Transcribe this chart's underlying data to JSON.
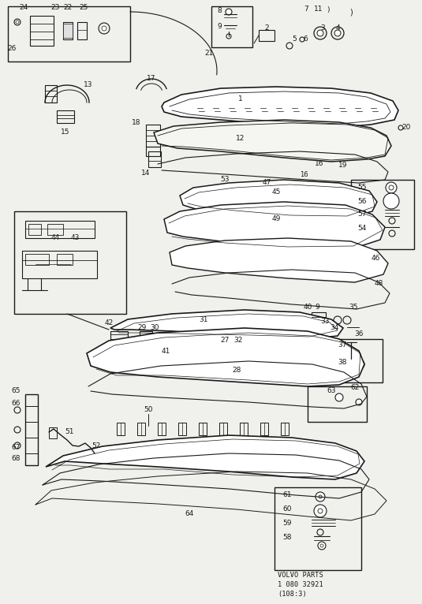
{
  "bg_color": "#f0f0ec",
  "line_color": "#1a1a1a",
  "volvo_parts_text": "VOLVO PARTS\n1 080 32921\n(108:3)",
  "fig_width": 5.35,
  "fig_height": 7.66,
  "dpi": 100
}
